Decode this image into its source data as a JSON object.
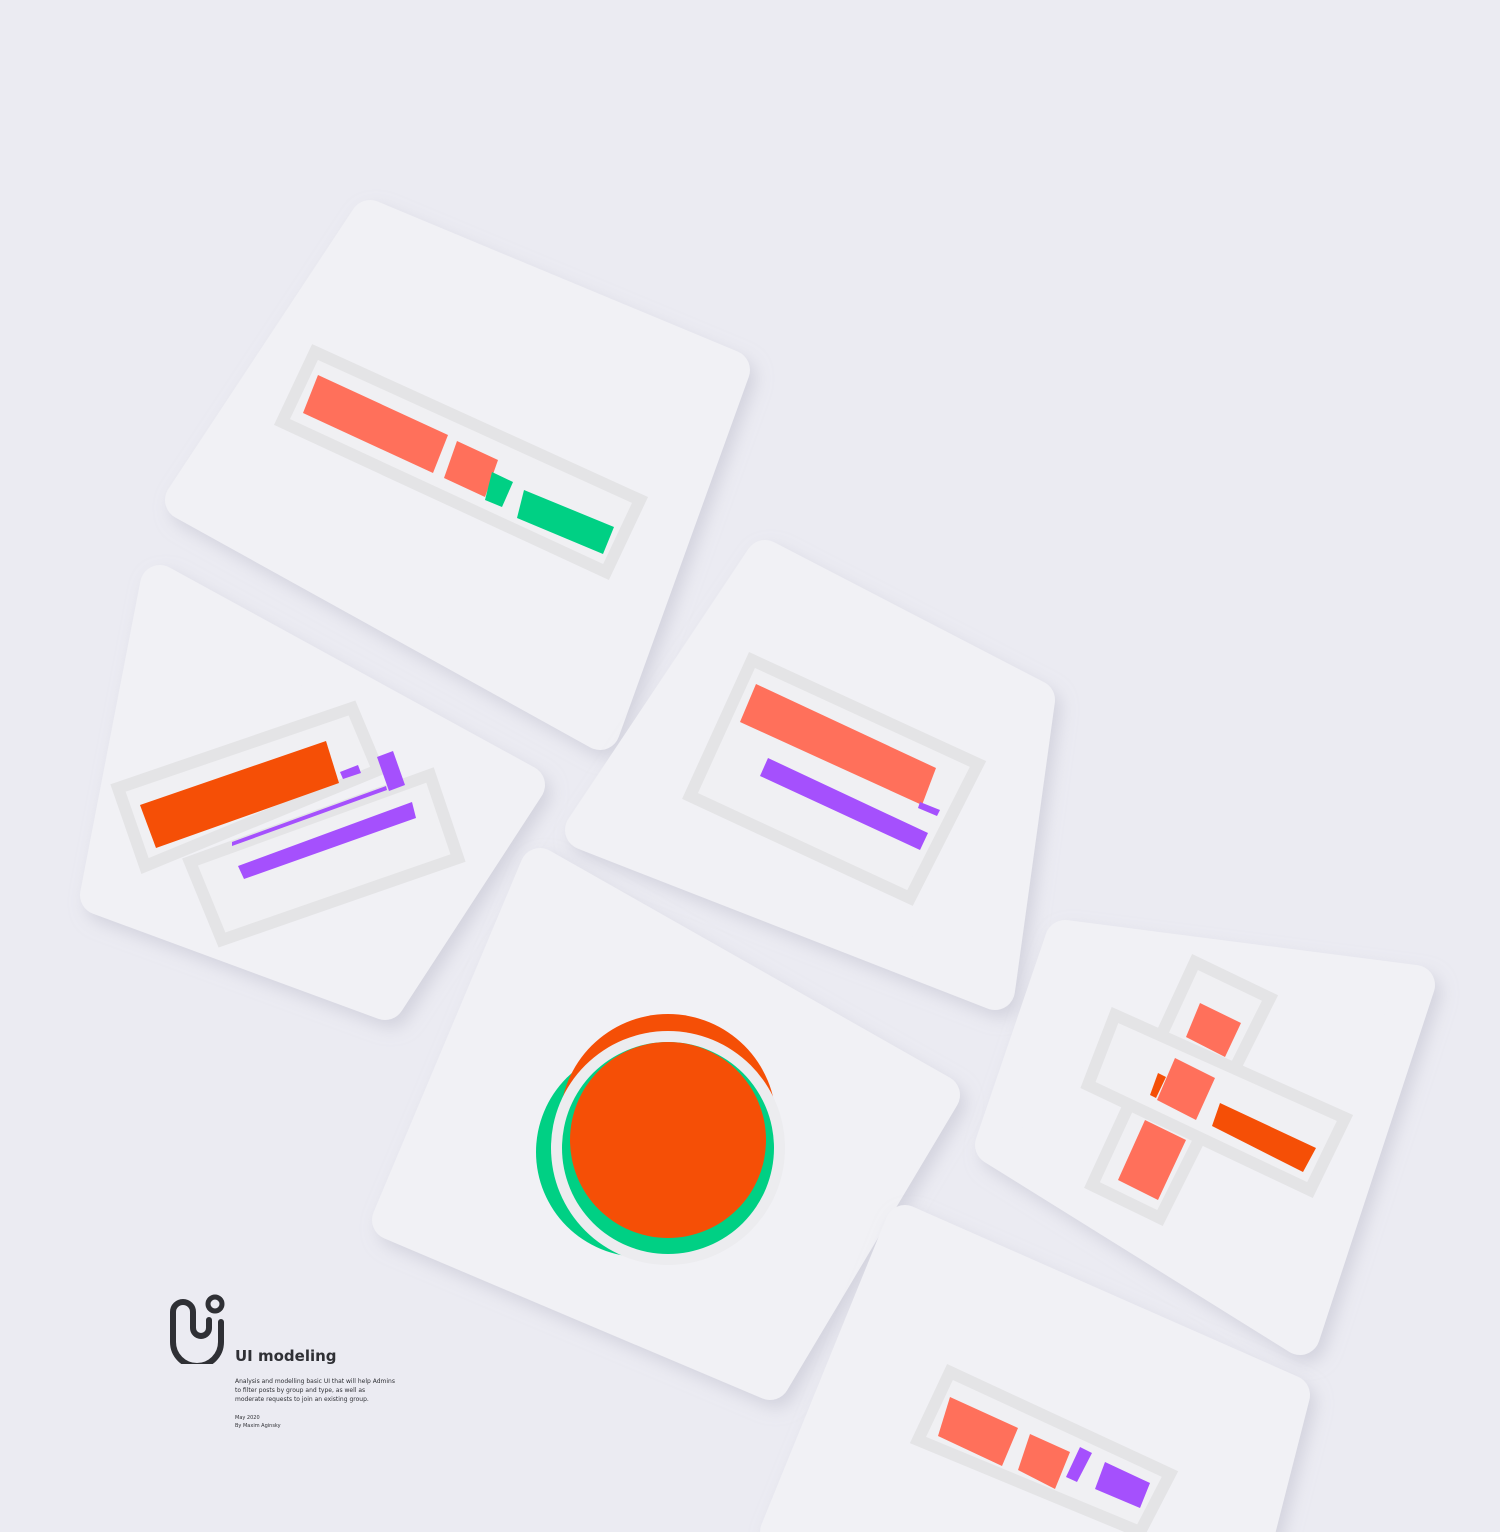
{
  "brand": {
    "title": "UI modeling",
    "description": "Analysis and modelling basic UI that will help Admins to filter posts by group and type, as well as moderate requests to join an existing group.",
    "date": "May 2020",
    "author": "By Maxim Aginsky",
    "logo_icon": "ui-logo-icon"
  },
  "colors": {
    "background": "#ebebf2",
    "card": "#f1f1f5",
    "coral": "#ff705b",
    "orange": "#f54f06",
    "green": "#00d084",
    "purple": "#a550fd",
    "text": "#2f3035"
  }
}
